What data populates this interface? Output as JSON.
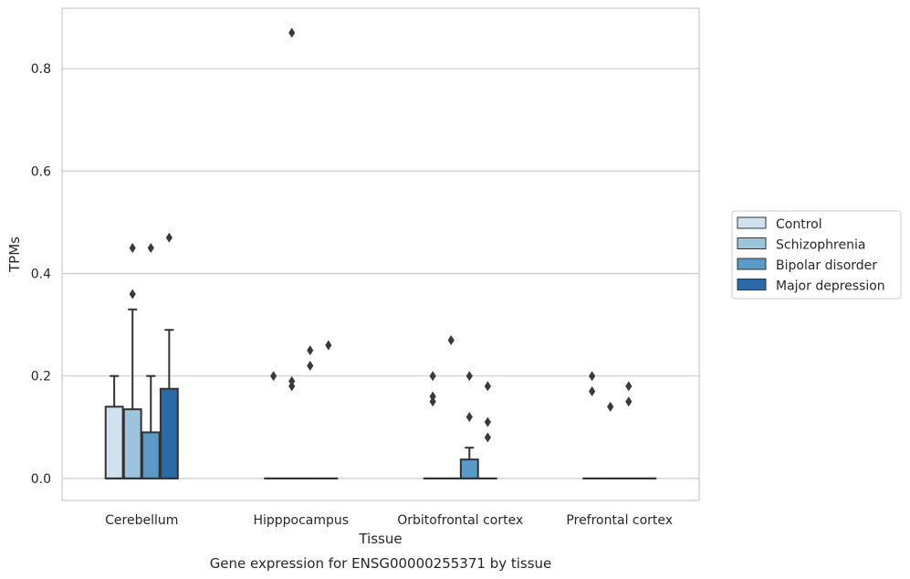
{
  "chart_data": {
    "type": "box",
    "title": "Gene expression for ENSG00000255371 by tissue",
    "xlabel": "Tissue",
    "ylabel": "TPMs",
    "ylim": [
      -0.043,
      0.918
    ],
    "yticks": [
      0.0,
      0.2,
      0.4,
      0.6,
      0.8
    ],
    "ytick_labels": [
      "0.0",
      "0.2",
      "0.4",
      "0.6",
      "0.8"
    ],
    "grid": true,
    "legend_position": "right",
    "categories": [
      "Cerebellum",
      "Hipppocampus",
      "Orbitofrontal cortex",
      "Prefrontal cortex"
    ],
    "series": [
      {
        "name": "Control",
        "color": "#d0e1f0",
        "boxes": [
          {
            "q1": 0.0,
            "median": 0.0,
            "q3": 0.14,
            "whisker_low": 0.0,
            "whisker_high": 0.2,
            "outliers": []
          },
          {
            "q1": 0.0,
            "median": 0.0,
            "q3": 0.0,
            "whisker_low": 0.0,
            "whisker_high": 0.0,
            "outliers": [
              0.2
            ]
          },
          {
            "q1": 0.0,
            "median": 0.0,
            "q3": 0.0,
            "whisker_low": 0.0,
            "whisker_high": 0.0,
            "outliers": [
              0.2,
              0.16,
              0.15
            ]
          },
          {
            "q1": 0.0,
            "median": 0.0,
            "q3": 0.0,
            "whisker_low": 0.0,
            "whisker_high": 0.0,
            "outliers": [
              0.2,
              0.17
            ]
          }
        ]
      },
      {
        "name": "Schizophrenia",
        "color": "#9cc4dd",
        "boxes": [
          {
            "q1": 0.0,
            "median": 0.0,
            "q3": 0.135,
            "whisker_low": 0.0,
            "whisker_high": 0.33,
            "outliers": [
              0.45,
              0.36
            ]
          },
          {
            "q1": 0.0,
            "median": 0.0,
            "q3": 0.0,
            "whisker_low": 0.0,
            "whisker_high": 0.0,
            "outliers": [
              0.19,
              0.18,
              0.87
            ]
          },
          {
            "q1": 0.0,
            "median": 0.0,
            "q3": 0.0,
            "whisker_low": 0.0,
            "whisker_high": 0.0,
            "outliers": [
              0.27
            ]
          },
          {
            "q1": 0.0,
            "median": 0.0,
            "q3": 0.0,
            "whisker_low": 0.0,
            "whisker_high": 0.0,
            "outliers": [
              0.14
            ]
          }
        ]
      },
      {
        "name": "Bipolar disorder",
        "color": "#5a9ac8",
        "boxes": [
          {
            "q1": 0.0,
            "median": 0.0,
            "q3": 0.09,
            "whisker_low": 0.0,
            "whisker_high": 0.2,
            "outliers": [
              0.45
            ]
          },
          {
            "q1": 0.0,
            "median": 0.0,
            "q3": 0.0,
            "whisker_low": 0.0,
            "whisker_high": 0.0,
            "outliers": [
              0.25,
              0.22
            ]
          },
          {
            "q1": 0.0,
            "median": 0.0,
            "q3": 0.037,
            "whisker_low": 0.0,
            "whisker_high": 0.06,
            "outliers": [
              0.2,
              0.12
            ]
          },
          {
            "q1": 0.0,
            "median": 0.0,
            "q3": 0.0,
            "whisker_low": 0.0,
            "whisker_high": 0.0,
            "outliers": [
              0.18,
              0.15
            ]
          }
        ]
      },
      {
        "name": "Major depression",
        "color": "#2a6aa8",
        "boxes": [
          {
            "q1": 0.0,
            "median": 0.0,
            "q3": 0.175,
            "whisker_low": 0.0,
            "whisker_high": 0.29,
            "outliers": [
              0.47
            ]
          },
          {
            "q1": 0.0,
            "median": 0.0,
            "q3": 0.0,
            "whisker_low": 0.0,
            "whisker_high": 0.0,
            "outliers": [
              0.26
            ]
          },
          {
            "q1": 0.0,
            "median": 0.0,
            "q3": 0.0,
            "whisker_low": 0.0,
            "whisker_high": 0.0,
            "outliers": [
              0.18,
              0.11,
              0.08
            ]
          },
          {
            "q1": 0.0,
            "median": 0.0,
            "q3": 0.0,
            "whisker_low": 0.0,
            "whisker_high": 0.0,
            "outliers": []
          }
        ]
      }
    ]
  }
}
